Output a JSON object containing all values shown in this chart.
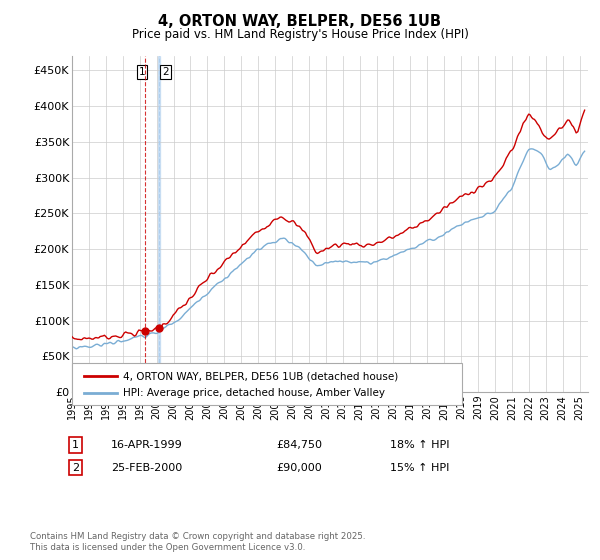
{
  "title": "4, ORTON WAY, BELPER, DE56 1UB",
  "subtitle": "Price paid vs. HM Land Registry's House Price Index (HPI)",
  "ytick_labels": [
    "£0",
    "£50K",
    "£100K",
    "£150K",
    "£200K",
    "£250K",
    "£300K",
    "£350K",
    "£400K",
    "£450K"
  ],
  "yticks": [
    0,
    50000,
    100000,
    150000,
    200000,
    250000,
    300000,
    350000,
    400000,
    450000
  ],
  "ylim": [
    0,
    470000
  ],
  "xlim_start": 1995.0,
  "xlim_end": 2025.5,
  "line1_color": "#cc0000",
  "line2_color": "#7aadd4",
  "vline1_color": "#cc0000",
  "vline2_color": "#aaccee",
  "legend_label1": "4, ORTON WAY, BELPER, DE56 1UB (detached house)",
  "legend_label2": "HPI: Average price, detached house, Amber Valley",
  "purchase1_x": 1999.29,
  "purchase1_y": 84750,
  "purchase2_x": 2000.15,
  "purchase2_y": 90000,
  "purchase1_date": "16-APR-1999",
  "purchase1_price": "£84,750",
  "purchase1_hpi": "18% ↑ HPI",
  "purchase2_date": "25-FEB-2000",
  "purchase2_price": "£90,000",
  "purchase2_hpi": "15% ↑ HPI",
  "footer": "Contains HM Land Registry data © Crown copyright and database right 2025.\nThis data is licensed under the Open Government Licence v3.0.",
  "background_color": "#ffffff",
  "grid_color": "#cccccc"
}
